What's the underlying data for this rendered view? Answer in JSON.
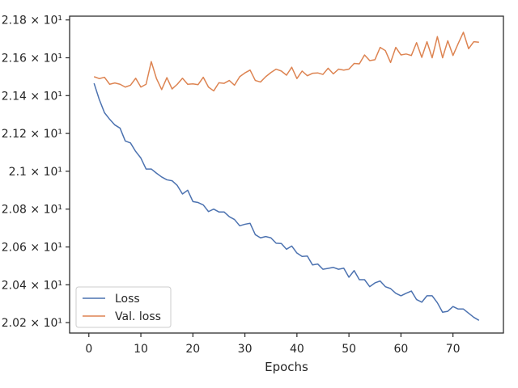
{
  "chart_data": {
    "type": "line",
    "title": "",
    "xlabel": "Epochs",
    "ylabel": "",
    "xlim": [
      -3.7,
      79.7
    ],
    "ylim": [
      20.145,
      21.82
    ],
    "grid": false,
    "legend_position": "lower-left",
    "x_ticks": [
      {
        "value": 0,
        "label": "0"
      },
      {
        "value": 10,
        "label": "10"
      },
      {
        "value": 20,
        "label": "20"
      },
      {
        "value": 30,
        "label": "30"
      },
      {
        "value": 40,
        "label": "40"
      },
      {
        "value": 50,
        "label": "50"
      },
      {
        "value": 60,
        "label": "60"
      },
      {
        "value": 70,
        "label": "70"
      }
    ],
    "y_ticks": [
      {
        "value": 20.2,
        "label": "2.02 × 10¹"
      },
      {
        "value": 20.4,
        "label": "2.04 × 10¹"
      },
      {
        "value": 20.6,
        "label": "2.06 × 10¹"
      },
      {
        "value": 20.8,
        "label": "2.08 × 10¹"
      },
      {
        "value": 21.0,
        "label": "2.1 × 10¹"
      },
      {
        "value": 21.2,
        "label": "2.12 × 10¹"
      },
      {
        "value": 21.4,
        "label": "2.14 × 10¹"
      },
      {
        "value": 21.6,
        "label": "2.16 × 10¹"
      },
      {
        "value": 21.8,
        "label": "2.18 × 10¹"
      }
    ],
    "x": [
      1,
      2,
      3,
      4,
      5,
      6,
      7,
      8,
      9,
      10,
      11,
      12,
      13,
      14,
      15,
      16,
      17,
      18,
      19,
      20,
      21,
      22,
      23,
      24,
      25,
      26,
      27,
      28,
      29,
      30,
      31,
      32,
      33,
      34,
      35,
      36,
      37,
      38,
      39,
      40,
      41,
      42,
      43,
      44,
      45,
      46,
      47,
      48,
      49,
      50,
      51,
      52,
      53,
      54,
      55,
      56,
      57,
      58,
      59,
      60,
      61,
      62,
      63,
      64,
      65,
      66,
      67,
      68,
      69,
      70,
      71,
      72,
      73,
      74,
      75
    ],
    "series": [
      {
        "name": "Loss",
        "color": "#4c72b0",
        "values": [
          21.465,
          21.38,
          21.31,
          21.275,
          21.245,
          21.228,
          21.16,
          21.15,
          21.105,
          21.07,
          21.012,
          21.012,
          20.99,
          20.97,
          20.955,
          20.95,
          20.925,
          20.88,
          20.9,
          20.84,
          20.835,
          20.822,
          20.787,
          20.8,
          20.785,
          20.785,
          20.76,
          20.745,
          20.712,
          20.72,
          20.725,
          20.665,
          20.648,
          20.655,
          20.648,
          20.62,
          20.618,
          20.588,
          20.605,
          20.568,
          20.55,
          20.552,
          20.505,
          20.51,
          20.482,
          20.487,
          20.492,
          20.482,
          20.488,
          20.44,
          20.475,
          20.427,
          20.427,
          20.39,
          20.41,
          20.42,
          20.39,
          20.38,
          20.355,
          20.342,
          20.355,
          20.367,
          20.322,
          20.308,
          20.342,
          20.342,
          20.305,
          20.255,
          20.26,
          20.285,
          20.272,
          20.272,
          20.25,
          20.228,
          20.212
        ]
      },
      {
        "name": "Val. loss",
        "color": "#dd8452",
        "values": [
          21.5,
          21.49,
          21.497,
          21.46,
          21.467,
          21.46,
          21.445,
          21.455,
          21.492,
          21.445,
          21.46,
          21.58,
          21.49,
          21.432,
          21.495,
          21.435,
          21.46,
          21.492,
          21.46,
          21.462,
          21.458,
          21.497,
          21.445,
          21.425,
          21.468,
          21.465,
          21.48,
          21.455,
          21.5,
          21.52,
          21.535,
          21.48,
          21.472,
          21.5,
          21.522,
          21.54,
          21.53,
          21.508,
          21.55,
          21.49,
          21.53,
          21.505,
          21.518,
          21.52,
          21.512,
          21.545,
          21.515,
          21.54,
          21.535,
          21.54,
          21.57,
          21.568,
          21.615,
          21.585,
          21.59,
          21.655,
          21.638,
          21.575,
          21.655,
          21.615,
          21.62,
          21.612,
          21.68,
          21.602,
          21.685,
          21.6,
          21.712,
          21.6,
          21.69,
          21.612,
          21.675,
          21.735,
          21.648,
          21.685,
          21.682
        ]
      }
    ]
  }
}
